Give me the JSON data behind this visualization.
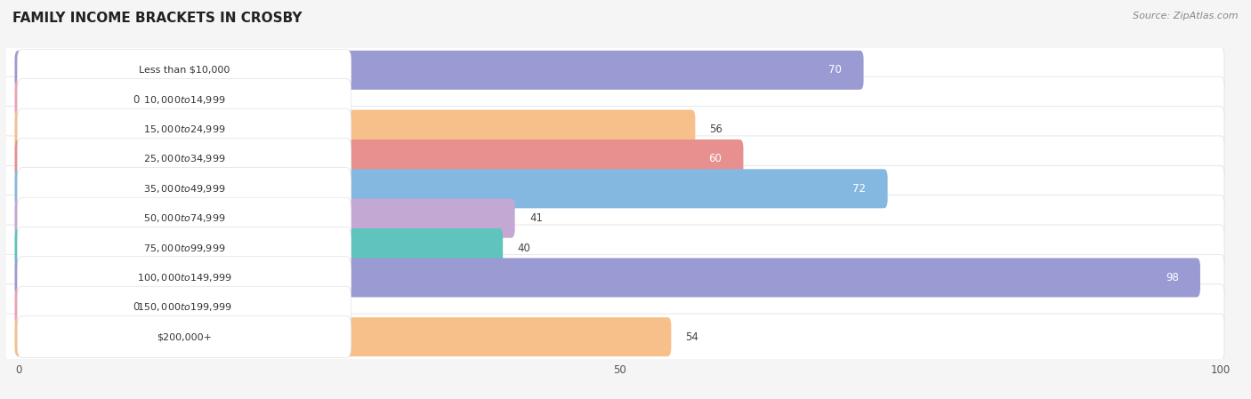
{
  "title": "FAMILY INCOME BRACKETS IN CROSBY",
  "source": "Source: ZipAtlas.com",
  "categories": [
    "Less than $10,000",
    "$10,000 to $14,999",
    "$15,000 to $24,999",
    "$25,000 to $34,999",
    "$35,000 to $49,999",
    "$50,000 to $74,999",
    "$75,000 to $99,999",
    "$100,000 to $149,999",
    "$150,000 to $199,999",
    "$200,000+"
  ],
  "values": [
    70,
    0,
    56,
    60,
    72,
    41,
    40,
    98,
    0,
    54
  ],
  "bar_colors": [
    "#9b9bd4",
    "#f4a0b5",
    "#f7c08a",
    "#e89090",
    "#85b8e0",
    "#c4a8d4",
    "#5ec4bc",
    "#9b9bd4",
    "#f4a0b5",
    "#f7c08a"
  ],
  "xlim": [
    0,
    100
  ],
  "xticks": [
    0,
    50,
    100
  ],
  "background_color": "#f5f5f5",
  "row_bg_color": "#ffffff",
  "label_bg_color": "#ffffff",
  "grid_color": "#dddddd",
  "title_fontsize": 11,
  "label_fontsize": 8,
  "value_fontsize": 8.5,
  "source_fontsize": 8,
  "value_inside_threshold": 58,
  "value_inside_color": "#ffffff",
  "value_outside_color": "#444444",
  "label_text_color": "#333333",
  "zero_bar_width": 8
}
